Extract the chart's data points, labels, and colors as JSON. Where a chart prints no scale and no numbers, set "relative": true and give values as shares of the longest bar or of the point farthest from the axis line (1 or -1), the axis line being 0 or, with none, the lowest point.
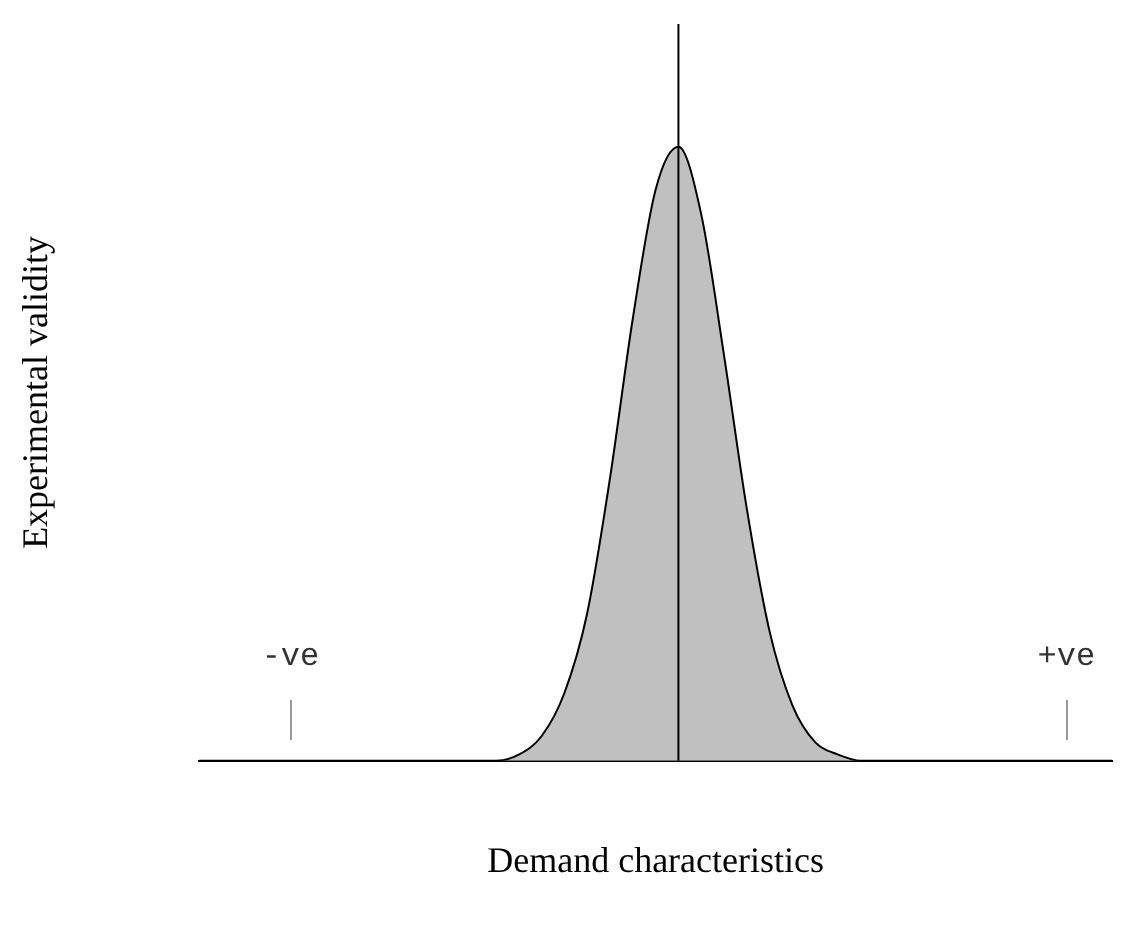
{
  "chart_data": {
    "type": "area",
    "relative": true,
    "xlabel": "Demand characteristics",
    "ylabel": "Experimental validity",
    "categories": [
      null,
      null,
      null,
      null,
      "-ve",
      null,
      null,
      null,
      null,
      null,
      null,
      null,
      null,
      null,
      null,
      null,
      null,
      null,
      null,
      null,
      null,
      null,
      null,
      null,
      null,
      null,
      null,
      null,
      null,
      null,
      null,
      null,
      null,
      null,
      null,
      null,
      null,
      null,
      "+ve",
      null,
      null
    ],
    "series": [
      {
        "color": "#c0c0c0",
        "values": [
          0,
          0,
          0,
          0,
          0,
          0,
          0,
          0,
          0,
          0,
          0,
          0,
          0,
          0,
          0.01,
          0.04,
          0.11,
          0.24,
          0.46,
          0.72,
          0.93,
          1,
          0.89,
          0.66,
          0.41,
          0.21,
          0.09,
          0.03,
          0.01,
          0,
          0,
          0,
          0,
          0,
          0,
          0,
          0,
          0,
          0,
          0,
          0
        ]
      }
    ]
  }
}
